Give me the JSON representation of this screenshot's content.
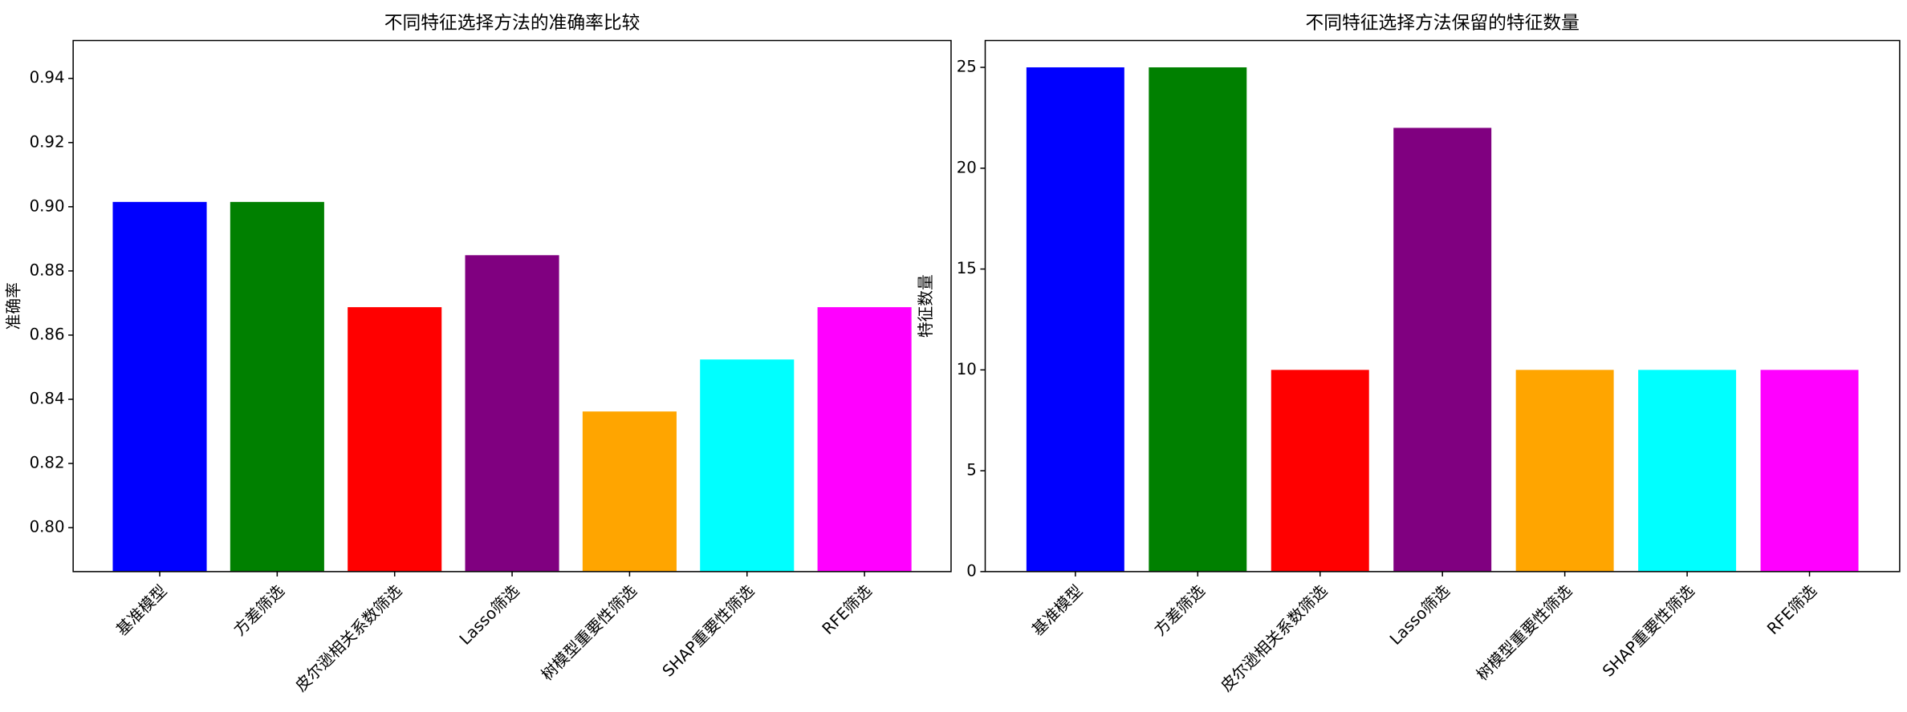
{
  "chart_data": [
    {
      "type": "bar",
      "title": "不同特征选择方法的准确率比较",
      "ylabel": "准确率",
      "categories": [
        "基准模型",
        "方差筛选",
        "皮尔逊相关系数筛选",
        "Lasso筛选",
        "树模型重要性筛选",
        "SHAP重要性筛选",
        "RFE筛选"
      ],
      "values": [
        0.9015,
        0.9015,
        0.8687,
        0.8849,
        0.8362,
        0.8524,
        0.8687
      ],
      "colors": [
        "blue",
        "green",
        "red",
        "purple",
        "orange",
        "cyan",
        "magenta"
      ],
      "ylim": [
        0.7863,
        0.9518
      ],
      "yticks": [
        {
          "value": 0.8,
          "label": "0.80"
        },
        0.82,
        0.84,
        0.86,
        0.88,
        {
          "value": 0.9,
          "label": "0.90"
        },
        0.92,
        0.94
      ]
    },
    {
      "type": "bar",
      "title": "不同特征选择方法保留的特征数量",
      "ylabel": "特征数量",
      "categories": [
        "基准模型",
        "方差筛选",
        "皮尔逊相关系数筛选",
        "Lasso筛选",
        "树模型重要性筛选",
        "SHAP重要性筛选",
        "RFE筛选"
      ],
      "values": [
        25,
        25,
        10,
        22,
        10,
        10,
        10
      ],
      "colors": [
        "blue",
        "green",
        "red",
        "purple",
        "orange",
        "cyan",
        "magenta"
      ],
      "ylim": [
        0,
        26.33
      ],
      "yticks": [
        0,
        5,
        10,
        15,
        20,
        25
      ]
    }
  ]
}
